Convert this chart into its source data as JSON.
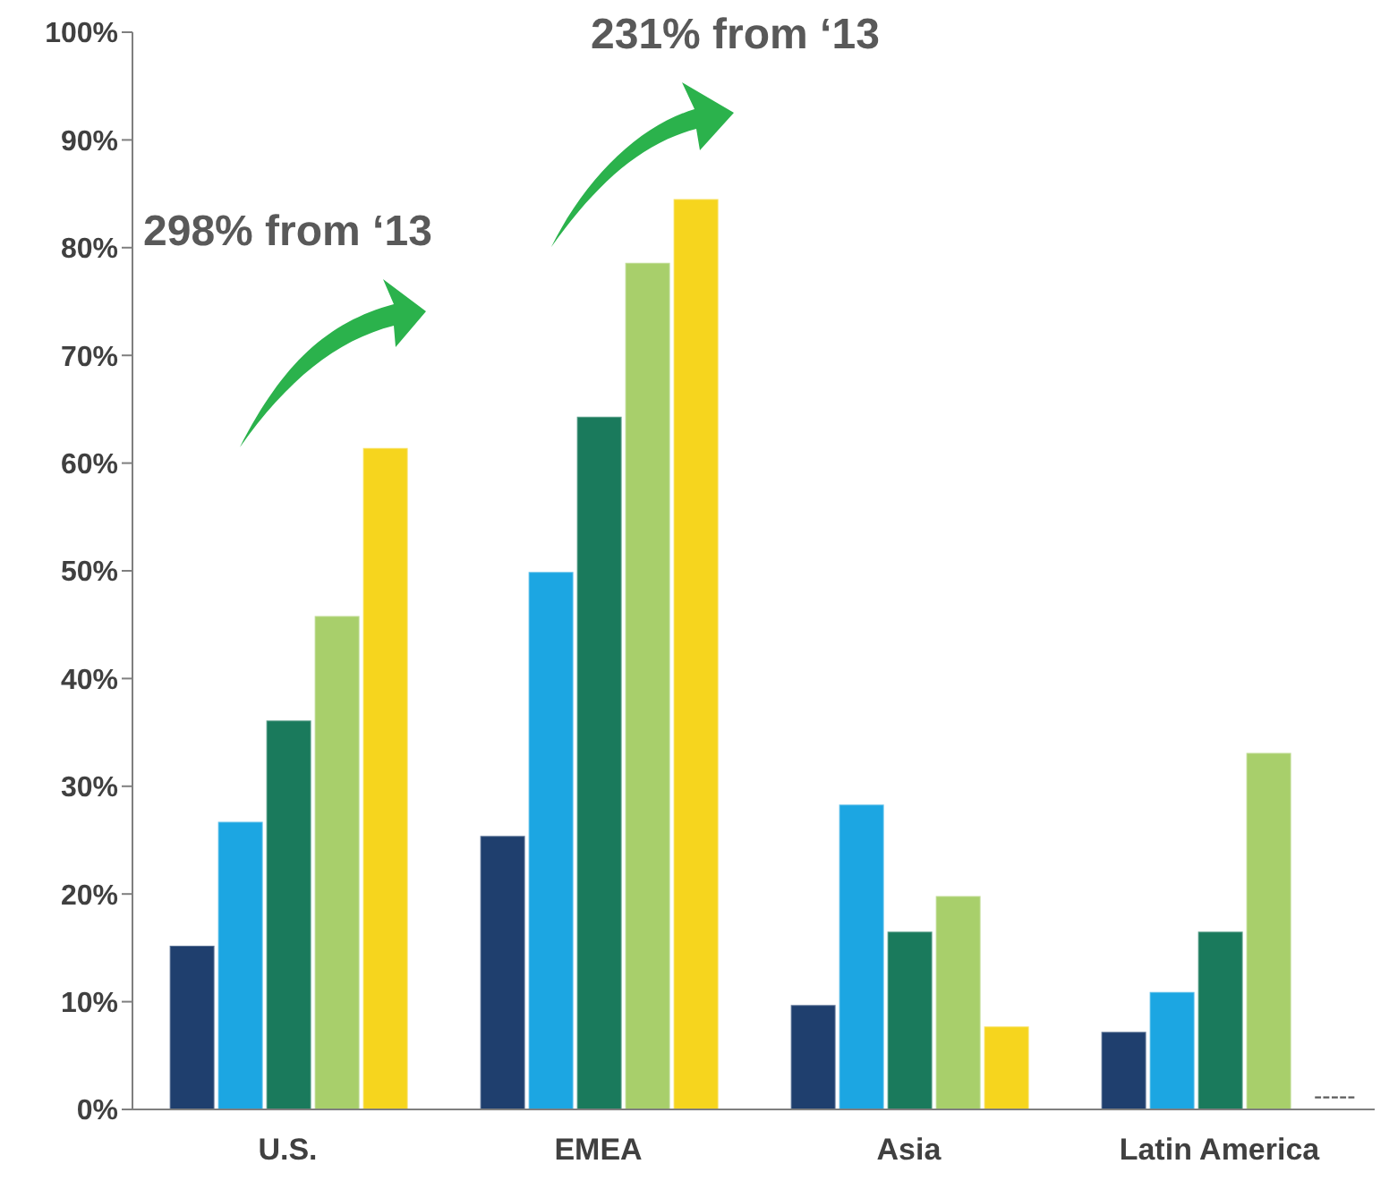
{
  "chart_data": {
    "type": "bar",
    "categories": [
      "U.S.",
      "EMEA",
      "Asia",
      "Latin America"
    ],
    "series": [
      {
        "color": "#1f3f6e",
        "values": [
          15.2,
          25.4,
          9.7,
          7.2
        ]
      },
      {
        "color": "#1ca6e2",
        "values": [
          26.7,
          49.9,
          28.3,
          10.9
        ]
      },
      {
        "color": "#1a7a5c",
        "values": [
          36.1,
          64.3,
          16.5,
          16.5
        ]
      },
      {
        "color": "#a8cf6b",
        "values": [
          45.8,
          78.6,
          19.8,
          33.1
        ]
      },
      {
        "color": "#f6d51e",
        "values": [
          61.4,
          84.5,
          7.7,
          null
        ]
      }
    ],
    "ylim": [
      0,
      100
    ],
    "yticks": [
      {
        "value": 0,
        "label": "0%"
      },
      {
        "value": 10,
        "label": "10%"
      },
      {
        "value": 20,
        "label": "20%"
      },
      {
        "value": 30,
        "label": "30%"
      },
      {
        "value": 40,
        "label": "40%"
      },
      {
        "value": 50,
        "label": "50%"
      },
      {
        "value": 60,
        "label": "60%"
      },
      {
        "value": 70,
        "label": "70%"
      },
      {
        "value": 80,
        "label": "80%"
      },
      {
        "value": 90,
        "label": "90%"
      },
      {
        "value": 100,
        "label": "100%"
      }
    ],
    "grid": false,
    "legend": false,
    "annotations": [
      "298% from ‘13",
      "231% from ‘13",
      "-----"
    ]
  }
}
